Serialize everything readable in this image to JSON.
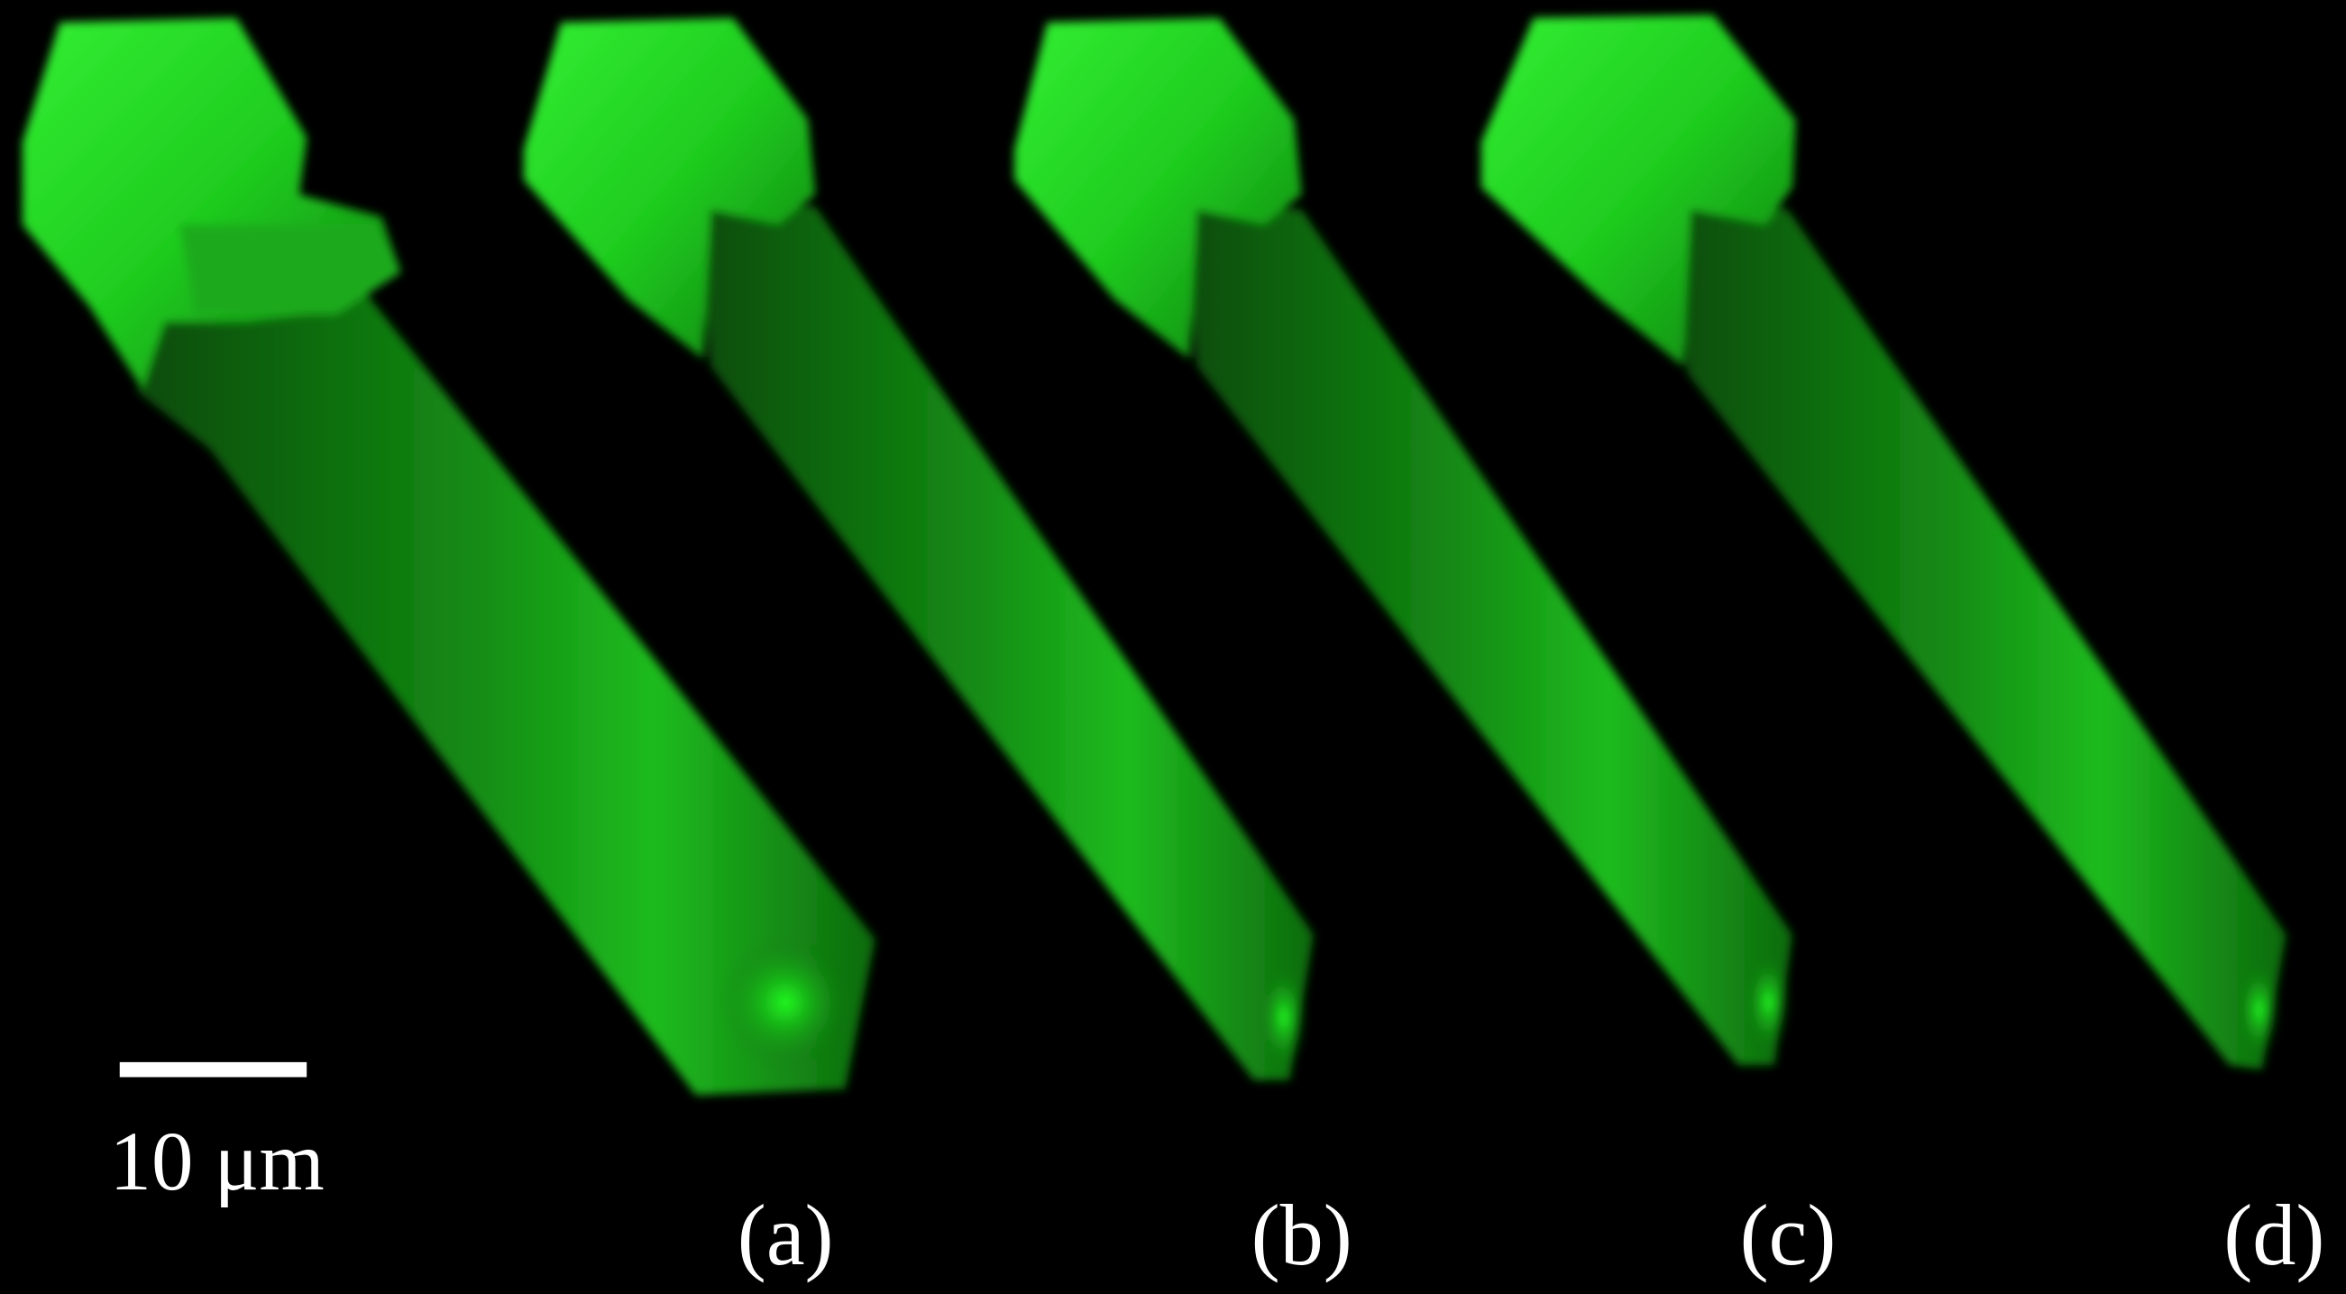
{
  "scale_bar": {
    "label": "10 μm"
  },
  "panels": [
    {
      "label": "(a)"
    },
    {
      "label": "(b)"
    },
    {
      "label": "(c)"
    },
    {
      "label": "(d)"
    }
  ]
}
